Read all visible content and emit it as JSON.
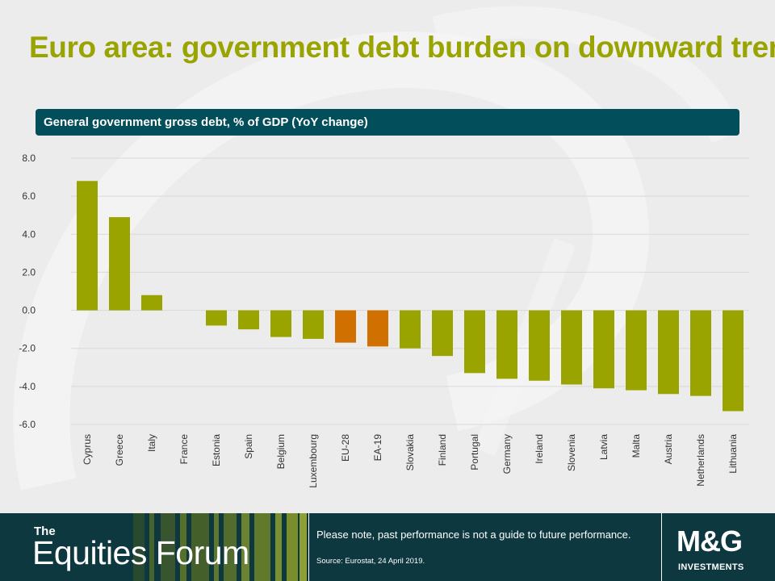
{
  "slide": {
    "title": "Euro area: government debt burden on downward trend",
    "subtitle": "General  government  gross debt, % of GDP (YoY  change)"
  },
  "chart_data": {
    "type": "bar",
    "categories": [
      "Cyprus",
      "Greece",
      "Italy",
      "France",
      "Estonia",
      "Spain",
      "Belgium",
      "Luxembourg",
      "EU-28",
      "EA-19",
      "Slovakia",
      "Finland",
      "Portugal",
      "Germany",
      "Ireland",
      "Slovenia",
      "Latvia",
      "Malta",
      "Austria",
      "Netherlands",
      "Lithuania"
    ],
    "values": [
      6.8,
      4.9,
      0.8,
      0.0,
      -0.8,
      -1.0,
      -1.4,
      -1.5,
      -1.7,
      -1.9,
      -2.0,
      -2.4,
      -3.3,
      -3.6,
      -3.7,
      -3.9,
      -4.1,
      -4.2,
      -4.4,
      -4.5,
      -5.3
    ],
    "highlight": [
      "EU-28",
      "EA-19"
    ],
    "ylim": [
      -6.0,
      8.0
    ],
    "yticks": [
      8.0,
      6.0,
      4.0,
      2.0,
      0.0,
      -2.0,
      -4.0,
      -6.0
    ],
    "ytick_labels": [
      "8.0",
      "6.0",
      "4.0",
      "2.0",
      "0.0",
      "-2.0",
      "-4.0",
      "-6.0"
    ],
    "grid": true,
    "colors": {
      "bar": "#9aa400",
      "highlight": "#d07000",
      "grid": "#d9d9d9"
    },
    "title": "General  government  gross debt, % of GDP (YoY  change)",
    "xlabel": "",
    "ylabel": ""
  },
  "footer": {
    "brand_small": "The",
    "brand_big": "Equities Forum",
    "note": "Please note, past performance is not a guide to future performance.",
    "source": "Source: Eurostat, 24 April 2019.",
    "logo_main": "M&G",
    "logo_sub": "INVESTMENTS"
  },
  "colors": {
    "title": "#9aa400",
    "subtitle_bar": "#034e5b",
    "footer": "#0e3840"
  }
}
